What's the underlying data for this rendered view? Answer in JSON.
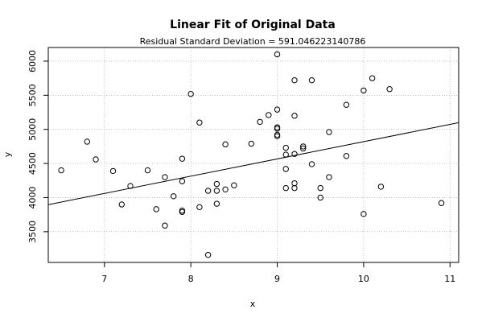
{
  "chart_data": {
    "type": "scatter",
    "title": "Linear Fit of Original Data",
    "subtitle": "Residual Standard Deviation =  591.046223140786",
    "xlabel": "x",
    "ylabel": "y",
    "xlim": [
      6.35,
      11.1
    ],
    "ylim": [
      3050,
      6200
    ],
    "x_ticks": [
      7,
      8,
      9,
      10,
      11
    ],
    "y_ticks": [
      3500,
      4000,
      4500,
      5000,
      5500,
      6000
    ],
    "grid": true,
    "fit_line": {
      "intercept": 2290,
      "slope": 253
    },
    "points": [
      {
        "x": 6.5,
        "y": 4400
      },
      {
        "x": 6.8,
        "y": 4820
      },
      {
        "x": 6.9,
        "y": 4560
      },
      {
        "x": 7.1,
        "y": 4390
      },
      {
        "x": 7.2,
        "y": 3900
      },
      {
        "x": 7.3,
        "y": 4170
      },
      {
        "x": 7.5,
        "y": 4400
      },
      {
        "x": 7.6,
        "y": 3830
      },
      {
        "x": 7.7,
        "y": 4300
      },
      {
        "x": 7.7,
        "y": 3590
      },
      {
        "x": 7.8,
        "y": 4020
      },
      {
        "x": 7.9,
        "y": 4570
      },
      {
        "x": 7.9,
        "y": 4240
      },
      {
        "x": 7.9,
        "y": 3810
      },
      {
        "x": 7.9,
        "y": 3790
      },
      {
        "x": 8.0,
        "y": 5520
      },
      {
        "x": 8.1,
        "y": 5100
      },
      {
        "x": 8.1,
        "y": 3860
      },
      {
        "x": 8.2,
        "y": 4100
      },
      {
        "x": 8.2,
        "y": 3160
      },
      {
        "x": 8.3,
        "y": 4200
      },
      {
        "x": 8.3,
        "y": 4100
      },
      {
        "x": 8.3,
        "y": 3910
      },
      {
        "x": 8.4,
        "y": 4780
      },
      {
        "x": 8.4,
        "y": 4120
      },
      {
        "x": 8.5,
        "y": 4180
      },
      {
        "x": 8.7,
        "y": 4790
      },
      {
        "x": 8.8,
        "y": 5110
      },
      {
        "x": 8.9,
        "y": 5210
      },
      {
        "x": 9.0,
        "y": 6100
      },
      {
        "x": 9.0,
        "y": 5290
      },
      {
        "x": 9.0,
        "y": 5030
      },
      {
        "x": 9.0,
        "y": 5010
      },
      {
        "x": 9.0,
        "y": 4920
      },
      {
        "x": 9.0,
        "y": 4900
      },
      {
        "x": 9.1,
        "y": 4730
      },
      {
        "x": 9.1,
        "y": 4630
      },
      {
        "x": 9.1,
        "y": 4420
      },
      {
        "x": 9.1,
        "y": 4140
      },
      {
        "x": 9.2,
        "y": 5720
      },
      {
        "x": 9.2,
        "y": 5200
      },
      {
        "x": 9.2,
        "y": 4640
      },
      {
        "x": 9.2,
        "y": 4210
      },
      {
        "x": 9.2,
        "y": 4140
      },
      {
        "x": 9.3,
        "y": 4750
      },
      {
        "x": 9.3,
        "y": 4720
      },
      {
        "x": 9.4,
        "y": 5720
      },
      {
        "x": 9.4,
        "y": 4490
      },
      {
        "x": 9.5,
        "y": 4140
      },
      {
        "x": 9.5,
        "y": 4000
      },
      {
        "x": 9.6,
        "y": 4960
      },
      {
        "x": 9.6,
        "y": 4300
      },
      {
        "x": 9.8,
        "y": 5360
      },
      {
        "x": 9.8,
        "y": 4610
      },
      {
        "x": 10.0,
        "y": 5570
      },
      {
        "x": 10.0,
        "y": 3760
      },
      {
        "x": 10.1,
        "y": 5750
      },
      {
        "x": 10.2,
        "y": 4160
      },
      {
        "x": 10.3,
        "y": 5590
      },
      {
        "x": 10.9,
        "y": 3920
      }
    ]
  }
}
